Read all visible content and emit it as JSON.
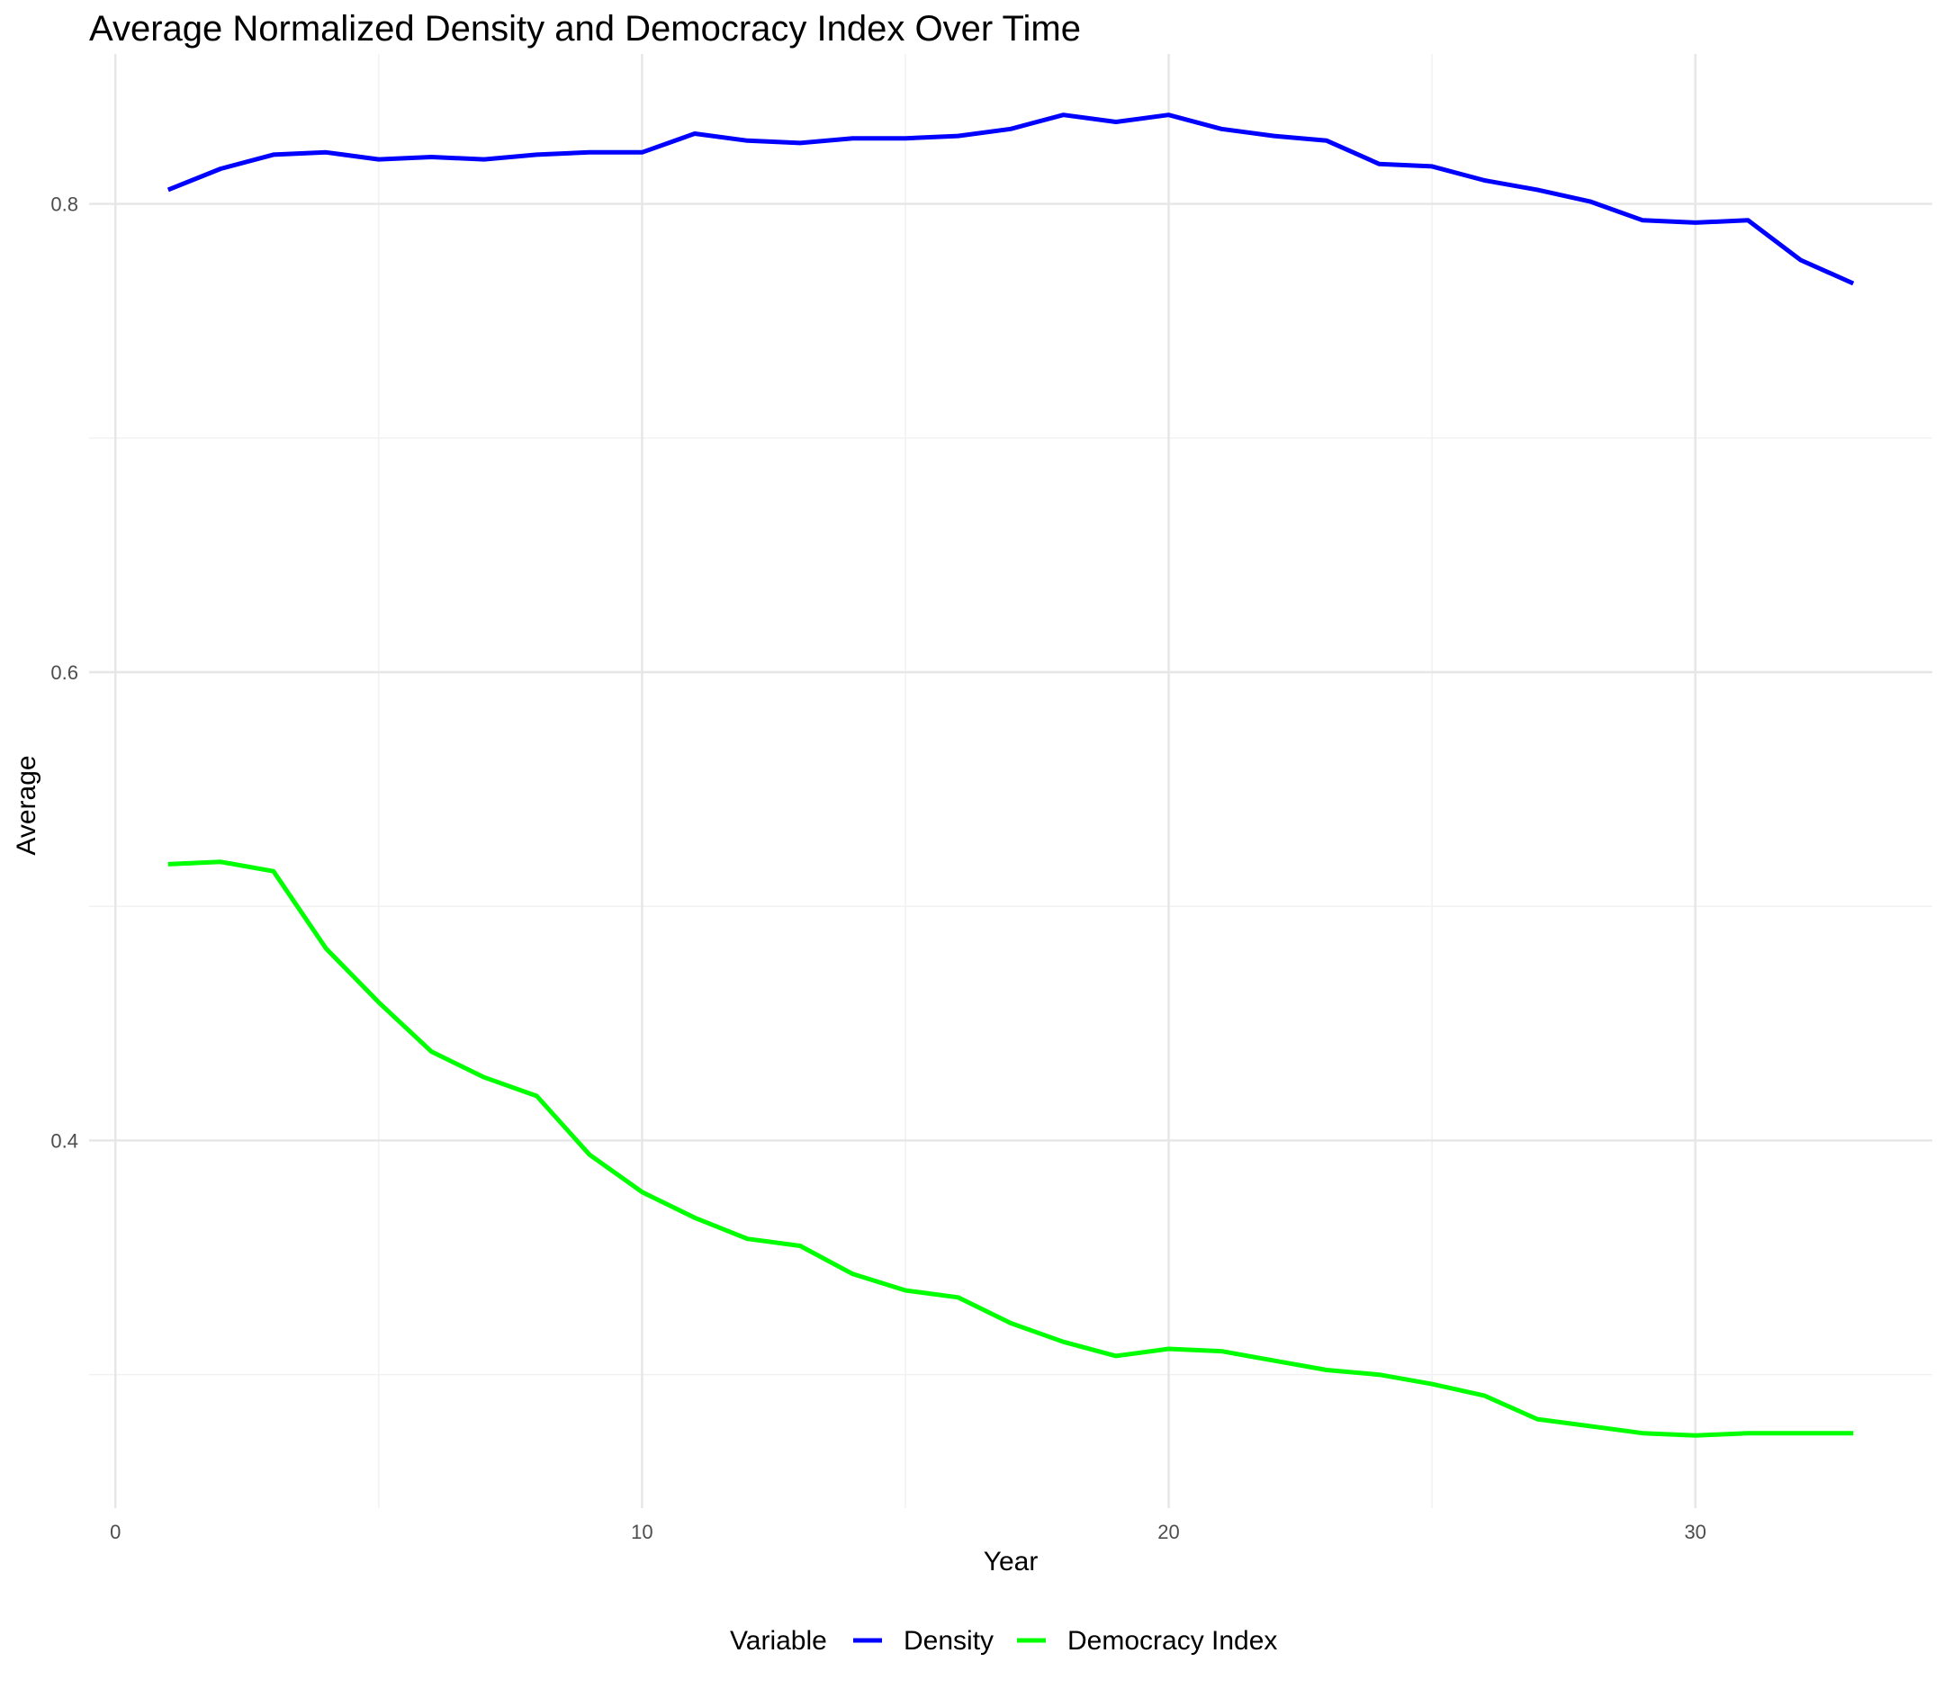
{
  "chart_data": {
    "type": "line",
    "title": "Average Normalized Density and Democracy Index Over Time",
    "xlabel": "Year",
    "ylabel": "Average",
    "xlim": [
      -0.5,
      34.5
    ],
    "ylim": [
      0.243,
      0.864
    ],
    "x_ticks": [
      0,
      10,
      20,
      30
    ],
    "x_tick_labels": [
      "0",
      "10",
      "20",
      "30"
    ],
    "y_ticks": [
      0.4,
      0.6,
      0.8
    ],
    "y_tick_labels": [
      "0.4",
      "0.6",
      "0.8"
    ],
    "x_minor_ticks": [
      5,
      15,
      25
    ],
    "y_minor_ticks": [
      0.3,
      0.5,
      0.7
    ],
    "grid": true,
    "legend": {
      "title": "Variable",
      "position": "bottom"
    },
    "x": [
      1,
      2,
      3,
      4,
      5,
      6,
      7,
      8,
      9,
      10,
      11,
      12,
      13,
      14,
      15,
      16,
      17,
      18,
      19,
      20,
      21,
      22,
      23,
      24,
      25,
      26,
      27,
      28,
      29,
      30,
      31,
      32,
      33
    ],
    "series": [
      {
        "name": "Density",
        "color": "#0000ff",
        "values": [
          0.806,
          0.815,
          0.821,
          0.822,
          0.819,
          0.82,
          0.819,
          0.821,
          0.822,
          0.822,
          0.83,
          0.827,
          0.826,
          0.828,
          0.828,
          0.829,
          0.832,
          0.838,
          0.835,
          0.838,
          0.832,
          0.829,
          0.827,
          0.817,
          0.816,
          0.81,
          0.806,
          0.801,
          0.793,
          0.792,
          0.793,
          0.776,
          0.766
        ]
      },
      {
        "name": "Democracy Index",
        "color": "#00ff00",
        "values": [
          0.518,
          0.519,
          0.515,
          0.482,
          0.459,
          0.438,
          0.427,
          0.419,
          0.394,
          0.378,
          0.367,
          0.358,
          0.355,
          0.343,
          0.336,
          0.333,
          0.322,
          0.314,
          0.308,
          0.311,
          0.31,
          0.306,
          0.302,
          0.3,
          0.296,
          0.291,
          0.281,
          0.278,
          0.275,
          0.274,
          0.275,
          0.275,
          0.275
        ]
      }
    ]
  }
}
